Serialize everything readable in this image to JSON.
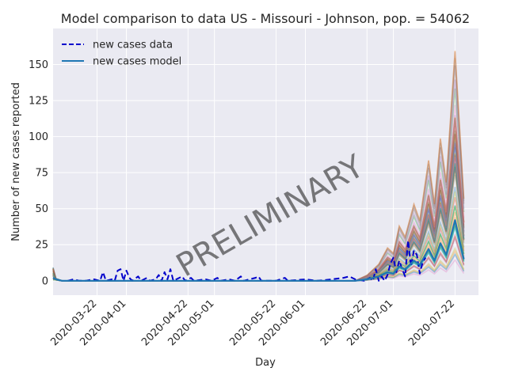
{
  "chart_data": {
    "type": "line",
    "title": "Model comparison to data US - Missouri - Johnson, pop. = 54062",
    "xlabel": "Day",
    "ylabel": "Number of new cases reported",
    "watermark": "PRELIMINARY",
    "x_range": [
      "2020-03-07",
      "2020-07-30"
    ],
    "ylim": [
      -10,
      175
    ],
    "grid": true,
    "legend_position": "top-left",
    "x_ticks": [
      "2020-03-22",
      "2020-04-01",
      "2020-04-22",
      "2020-05-01",
      "2020-05-22",
      "2020-06-01",
      "2020-06-22",
      "2020-07-01",
      "2020-07-22"
    ],
    "y_ticks": [
      0,
      25,
      50,
      75,
      100,
      125,
      150
    ],
    "legend": [
      {
        "label": "new cases data",
        "style": "dashed",
        "color": "#0000cc"
      },
      {
        "label": "new cases model",
        "style": "solid",
        "color": "#1f77b4"
      }
    ],
    "series": [
      {
        "name": "new cases data",
        "color": "#0000cc",
        "points": [
          [
            "2020-03-12",
            0
          ],
          [
            "2020-03-14",
            1
          ],
          [
            "2020-03-16",
            0
          ],
          [
            "2020-03-18",
            0
          ],
          [
            "2020-03-21",
            1
          ],
          [
            "2020-03-23",
            0
          ],
          [
            "2020-03-24",
            6
          ],
          [
            "2020-03-25",
            0
          ],
          [
            "2020-03-27",
            1
          ],
          [
            "2020-03-28",
            0
          ],
          [
            "2020-03-29",
            7
          ],
          [
            "2020-03-30",
            8
          ],
          [
            "2020-03-31",
            0
          ],
          [
            "2020-04-01",
            7
          ],
          [
            "2020-04-02",
            2
          ],
          [
            "2020-04-03",
            0
          ],
          [
            "2020-04-05",
            3
          ],
          [
            "2020-04-06",
            0
          ],
          [
            "2020-04-08",
            2
          ],
          [
            "2020-04-09",
            0
          ],
          [
            "2020-04-11",
            1
          ],
          [
            "2020-04-12",
            4
          ],
          [
            "2020-04-13",
            0
          ],
          [
            "2020-04-14",
            6
          ],
          [
            "2020-04-15",
            1
          ],
          [
            "2020-04-16",
            8
          ],
          [
            "2020-04-17",
            0
          ],
          [
            "2020-04-20",
            3
          ],
          [
            "2020-04-21",
            0
          ],
          [
            "2020-04-23",
            2
          ],
          [
            "2020-04-24",
            0
          ],
          [
            "2020-04-28",
            1
          ],
          [
            "2020-04-30",
            0
          ],
          [
            "2020-05-02",
            2
          ],
          [
            "2020-05-03",
            0
          ],
          [
            "2020-05-06",
            1
          ],
          [
            "2020-05-08",
            0
          ],
          [
            "2020-05-10",
            3
          ],
          [
            "2020-05-11",
            0
          ],
          [
            "2020-05-15",
            2
          ],
          [
            "2020-05-16",
            3
          ],
          [
            "2020-05-17",
            0
          ],
          [
            "2020-05-22",
            0
          ],
          [
            "2020-05-25",
            2
          ],
          [
            "2020-05-26",
            0
          ],
          [
            "2020-06-01",
            1
          ],
          [
            "2020-06-05",
            0
          ],
          [
            "2020-06-10",
            1
          ],
          [
            "2020-06-14",
            2
          ],
          [
            "2020-06-16",
            3
          ],
          [
            "2020-06-18",
            1
          ],
          [
            "2020-06-21",
            0
          ],
          [
            "2020-06-23",
            2
          ],
          [
            "2020-06-24",
            0
          ],
          [
            "2020-06-25",
            8
          ],
          [
            "2020-06-26",
            0
          ],
          [
            "2020-06-27",
            3
          ],
          [
            "2020-06-28",
            0
          ],
          [
            "2020-06-29",
            4
          ],
          [
            "2020-06-30",
            12
          ],
          [
            "2020-07-01",
            16
          ],
          [
            "2020-07-02",
            6
          ],
          [
            "2020-07-03",
            14
          ],
          [
            "2020-07-04",
            8
          ],
          [
            "2020-07-05",
            3
          ],
          [
            "2020-07-06",
            28
          ],
          [
            "2020-07-07",
            10
          ],
          [
            "2020-07-08",
            21
          ],
          [
            "2020-07-09",
            18
          ],
          [
            "2020-07-10",
            5
          ],
          [
            "2020-07-11",
            13
          ],
          [
            "2020-07-12",
            16
          ]
        ]
      },
      {
        "name": "new cases model",
        "color": "#1f77b4",
        "points": [
          [
            "2020-03-07",
            2
          ],
          [
            "2020-03-08",
            1
          ],
          [
            "2020-03-10",
            0
          ],
          [
            "2020-06-18",
            0
          ],
          [
            "2020-06-22",
            1
          ],
          [
            "2020-06-26",
            3
          ],
          [
            "2020-06-29",
            6
          ],
          [
            "2020-07-01",
            5
          ],
          [
            "2020-07-03",
            10
          ],
          [
            "2020-07-05",
            8
          ],
          [
            "2020-07-08",
            14
          ],
          [
            "2020-07-10",
            11
          ],
          [
            "2020-07-13",
            22
          ],
          [
            "2020-07-15",
            14
          ],
          [
            "2020-07-17",
            26
          ],
          [
            "2020-07-19",
            18
          ],
          [
            "2020-07-22",
            42
          ],
          [
            "2020-07-24",
            24
          ],
          [
            "2020-07-25",
            15
          ]
        ]
      }
    ]
  }
}
